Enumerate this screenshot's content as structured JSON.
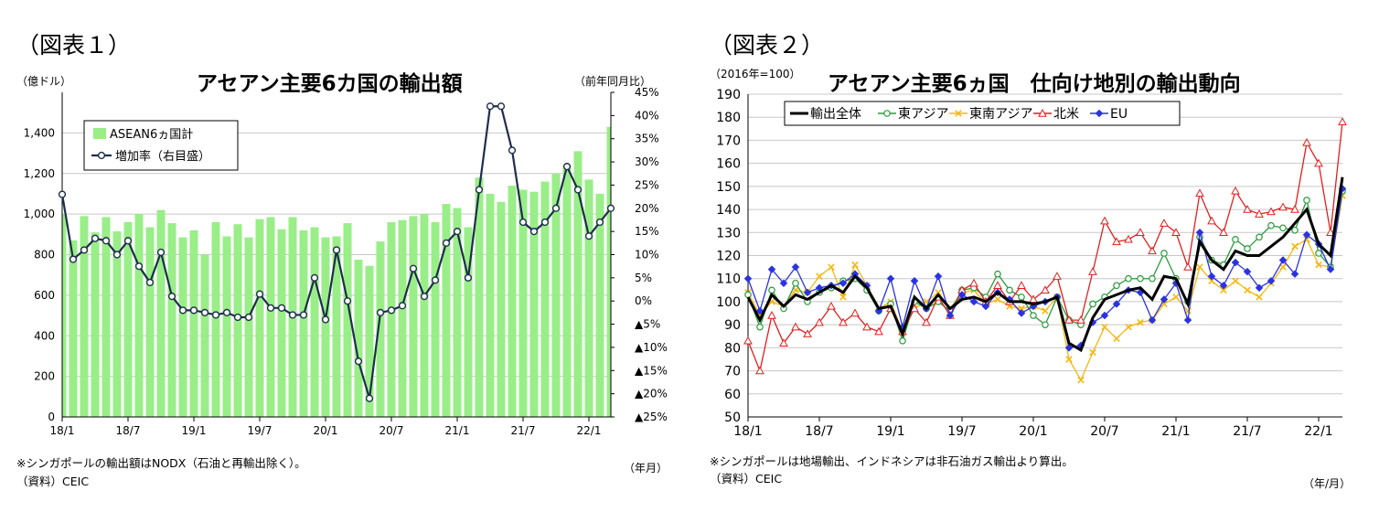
{
  "chart_data": [
    {
      "type": "bar",
      "figure_label": "（図表１）",
      "title": "アセアン主要6カ国の輸出額",
      "ylabel": "（億ドル）",
      "y2label": "（前年同月比）",
      "xlabel": "（年月）",
      "ylim": [
        0,
        1600
      ],
      "yticks": [
        0,
        200,
        400,
        600,
        800,
        1000,
        1200,
        1400
      ],
      "ytick_labels": [
        "0",
        "200",
        "400",
        "600",
        "800",
        "1,000",
        "1,200",
        "1,400"
      ],
      "y2lim": [
        -25,
        45
      ],
      "y2ticks": [
        -25,
        -20,
        -15,
        -10,
        -5,
        0,
        5,
        10,
        15,
        20,
        25,
        30,
        35,
        40,
        45
      ],
      "y2tick_labels": [
        "▲25%",
        "▲20%",
        "▲15%",
        "▲10%",
        "▲5%",
        "0%",
        "5%",
        "10%",
        "15%",
        "20%",
        "25%",
        "30%",
        "35%",
        "40%",
        "45%"
      ],
      "xtick_labels": [
        "18/1",
        "18/7",
        "19/1",
        "19/7",
        "20/1",
        "20/7",
        "21/1",
        "21/7",
        "22/1"
      ],
      "xtick_every": 6,
      "legend_placement": "top-left",
      "series": [
        {
          "name": "ASEAN6ヵ国計",
          "axis": "left",
          "color": "#99ee88",
          "values": [
            1000,
            870,
            990,
            910,
            985,
            915,
            960,
            1000,
            935,
            1020,
            955,
            885,
            920,
            800,
            960,
            890,
            950,
            885,
            975,
            985,
            925,
            985,
            920,
            935,
            885,
            890,
            955,
            775,
            745,
            865,
            960,
            970,
            990,
            1000,
            960,
            1050,
            1030,
            935,
            1180,
            1100,
            1060,
            1140,
            1120,
            1110,
            1160,
            1200,
            1240,
            1310,
            1170,
            1100,
            1430
          ]
        },
        {
          "name": "増加率（右目盛）",
          "axis": "right",
          "color": "#1f2d4d",
          "values": [
            23,
            9,
            11,
            13.5,
            13,
            10,
            13,
            7.5,
            4,
            10.5,
            1,
            -2,
            -2,
            -2.5,
            -3,
            -2.5,
            -3.5,
            -3.5,
            1.5,
            -1.5,
            -1.5,
            -3,
            -3,
            5,
            -4,
            11,
            0,
            -13,
            -21,
            -2.5,
            -2,
            -1,
            7,
            1,
            4.5,
            12.5,
            15,
            5,
            24,
            42,
            42,
            32.5,
            17,
            15,
            17,
            20,
            29,
            24,
            14,
            17,
            20
          ]
        }
      ]
    },
    {
      "type": "line",
      "figure_label": "（図表２）",
      "title": "アセアン主要6ヵ国　仕向け地別の輸出動向",
      "ylabel": "（2016年=100）",
      "xlabel": "（年/月）",
      "ylim": [
        50,
        190
      ],
      "yticks": [
        50,
        60,
        70,
        80,
        90,
        100,
        110,
        120,
        130,
        140,
        150,
        160,
        170,
        180,
        190
      ],
      "xtick_labels": [
        "18/1",
        "18/7",
        "19/1",
        "19/7",
        "20/1",
        "20/7",
        "21/1",
        "21/7",
        "22/1"
      ],
      "xtick_every": 6,
      "legend_placement": "top-left",
      "series": [
        {
          "name": "輸出全体",
          "color": "#000000",
          "marker": "none",
          "values": [
            102,
            92,
            103,
            98,
            103,
            101,
            104,
            107,
            104,
            111,
            106,
            97,
            98,
            86,
            102,
            97,
            103,
            97,
            101,
            102,
            100,
            104,
            100,
            100,
            99,
            100,
            102,
            82,
            79,
            93,
            101,
            103,
            105,
            106,
            101,
            111,
            110,
            99,
            126,
            118,
            114,
            122,
            120,
            120,
            124,
            128,
            134,
            140,
            125,
            120,
            154
          ]
        },
        {
          "name": "東アジア",
          "color": "#2a9a3c",
          "marker": "circle",
          "values": [
            103,
            89,
            105,
            97,
            108,
            100,
            104,
            106,
            109,
            110,
            105,
            96,
            99,
            83,
            100,
            97,
            100,
            96,
            105,
            106,
            102,
            112,
            105,
            102,
            94,
            90,
            102,
            92,
            90,
            99,
            102,
            107,
            110,
            110,
            110,
            121,
            110,
            100,
            128,
            118,
            116,
            127,
            123,
            128,
            133,
            132,
            131,
            144,
            121,
            115,
            148
          ]
        },
        {
          "name": "東南アジア",
          "color": "#f5b80f",
          "marker": "x",
          "values": [
            104,
            94,
            100,
            98,
            105,
            104,
            111,
            115,
            102,
            116,
            107,
            97,
            100,
            87,
            97,
            100,
            104,
            97,
            104,
            105,
            99,
            101,
            98,
            97,
            98,
            96,
            102,
            75,
            66,
            78,
            89,
            84,
            89,
            91,
            92,
            99,
            102,
            96,
            115,
            109,
            105,
            109,
            105,
            102,
            108,
            115,
            124,
            127,
            116,
            115,
            146
          ]
        },
        {
          "name": "北米",
          "color": "#e02020",
          "marker": "triangle",
          "values": [
            83,
            70,
            94,
            82,
            89,
            86,
            91,
            98,
            91,
            95,
            89,
            87,
            97,
            87,
            97,
            91,
            102,
            94,
            105,
            108,
            100,
            107,
            100,
            107,
            101,
            105,
            111,
            92,
            92,
            113,
            135,
            126,
            127,
            130,
            122,
            134,
            130,
            115,
            147,
            135,
            130,
            148,
            140,
            138,
            139,
            141,
            140,
            169,
            160,
            130,
            178
          ]
        },
        {
          "name": "EU",
          "color": "#2a33e0",
          "marker": "diamond",
          "values": [
            110,
            96,
            114,
            108,
            115,
            104,
            106,
            107,
            108,
            112,
            107,
            96,
            110,
            89,
            109,
            97,
            111,
            94,
            103,
            100,
            98,
            104,
            101,
            95,
            98,
            100,
            102,
            80,
            81,
            91,
            94,
            99,
            105,
            104,
            92,
            101,
            108,
            92,
            130,
            111,
            107,
            117,
            113,
            106,
            109,
            118,
            112,
            129,
            125,
            114,
            149
          ]
        }
      ]
    }
  ],
  "notes": {
    "left_footnote": "※シンガポールの輸出額はNODX（石油と再輸出除く）。",
    "left_source": "（資料）CEIC",
    "right_footnote": "※シンガポールは地場輸出、インドネシアは非石油ガス輸出より算出。",
    "right_source": "（資料）CEIC"
  }
}
